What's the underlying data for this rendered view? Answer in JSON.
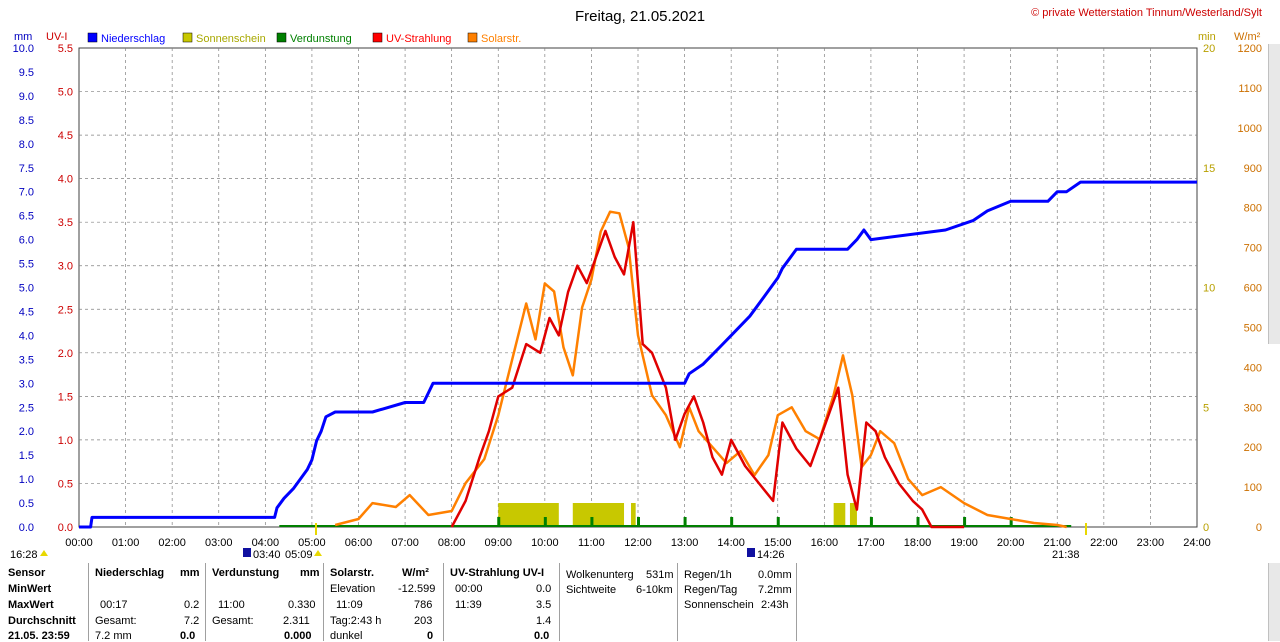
{
  "title": "Freitag, 21.05.2021",
  "copyright": "© private Wetterstation Tinnum/Westerland/Sylt",
  "axis_units": {
    "left1": "mm",
    "left2": "UV-I",
    "right1": "min",
    "right2": "W/m²"
  },
  "legend": [
    {
      "label": "Niederschlag",
      "color": "#0000ff"
    },
    {
      "label": "Sonnenschein",
      "color": "#c8c800"
    },
    {
      "label": "Verdunstung",
      "color": "#008000"
    },
    {
      "label": "UV-Strahlung",
      "color": "#ff0000"
    },
    {
      "label": "Solarstr.",
      "color": "#ff8000"
    }
  ],
  "colors": {
    "precip": "#0000ff",
    "sun": "#c8c800",
    "evap": "#008000",
    "uv": "#e00000",
    "solar": "#ff8000",
    "grid": "#808080"
  },
  "time_marks": {
    "current": "16:28",
    "sunrise": "03:40",
    "sunrise2": "05:09",
    "noon": "14:26",
    "sunset": "21:38"
  },
  "chart_data": {
    "type": "line",
    "x_unit": "hours",
    "xlim": [
      0,
      24
    ],
    "x_ticks": [
      "00:00",
      "01:00",
      "02:00",
      "03:00",
      "04:00",
      "05:00",
      "06:00",
      "07:00",
      "08:00",
      "09:00",
      "10:00",
      "11:00",
      "12:00",
      "13:00",
      "14:00",
      "15:00",
      "16:00",
      "17:00",
      "18:00",
      "19:00",
      "20:00",
      "21:00",
      "22:00",
      "23:00",
      "24:00"
    ],
    "y_mm": {
      "lim": [
        0,
        10
      ],
      "ticks": [
        "0.0",
        "0.5",
        "1.0",
        "1.5",
        "2.0",
        "2.5",
        "3.0",
        "3.5",
        "4.0",
        "4.5",
        "5.0",
        "5.5",
        "6.0",
        "6.5",
        "7.0",
        "7.5",
        "8.0",
        "8.5",
        "9.0",
        "9.5",
        "10.0"
      ]
    },
    "y_uv": {
      "lim": [
        0,
        5.5
      ],
      "ticks": [
        "0.0",
        "0.5",
        "1.0",
        "1.5",
        "2.0",
        "2.5",
        "3.0",
        "3.5",
        "4.0",
        "4.5",
        "5.0",
        "5.5"
      ]
    },
    "y_min": {
      "lim": [
        0,
        20
      ],
      "ticks": [
        "0",
        "5",
        "10",
        "15",
        "20"
      ]
    },
    "y_wm2": {
      "lim": [
        0,
        1200
      ],
      "ticks": [
        "0",
        "100",
        "200",
        "300",
        "400",
        "500",
        "600",
        "700",
        "800",
        "900",
        "1000",
        "1100",
        "1200"
      ]
    },
    "series": [
      {
        "name": "Niederschlag",
        "axis": "mm",
        "x": [
          0,
          0.25,
          0.28,
          4.2,
          4.25,
          4.4,
          4.6,
          4.75,
          4.9,
          5.0,
          5.1,
          5.2,
          5.3,
          5.5,
          5.8,
          6.3,
          7.0,
          7.4,
          7.5,
          7.6,
          10.5,
          13.0,
          13.1,
          13.4,
          13.6,
          13.8,
          14.0,
          14.2,
          14.4,
          14.55,
          14.7,
          14.85,
          15.0,
          15.1,
          15.25,
          15.4,
          15.55,
          16.5,
          16.7,
          16.85,
          17.0,
          18.6,
          19.2,
          19.5,
          20.0,
          20.8,
          21.0,
          21.2,
          21.5,
          22.5,
          23.0,
          24.0
        ],
        "y": [
          0,
          0,
          0.2,
          0.2,
          0.4,
          0.6,
          0.8,
          1.0,
          1.2,
          1.4,
          1.8,
          2.0,
          2.3,
          2.4,
          2.4,
          2.4,
          2.6,
          2.6,
          2.8,
          3.0,
          3.0,
          3.0,
          3.2,
          3.4,
          3.6,
          3.8,
          4.0,
          4.2,
          4.4,
          4.6,
          4.8,
          5.0,
          5.2,
          5.4,
          5.6,
          5.8,
          5.8,
          5.8,
          6.0,
          6.2,
          6.0,
          6.2,
          6.4,
          6.6,
          6.8,
          6.8,
          7.0,
          7.0,
          7.2,
          7.2,
          7.2,
          7.2
        ]
      },
      {
        "name": "UV-Strahlung",
        "axis": "uv",
        "x": [
          8.0,
          8.3,
          8.6,
          8.8,
          9.0,
          9.3,
          9.6,
          9.9,
          10.1,
          10.3,
          10.5,
          10.7,
          10.9,
          11.1,
          11.3,
          11.5,
          11.7,
          11.9,
          12.1,
          12.3,
          12.6,
          12.8,
          13.0,
          13.2,
          13.4,
          13.6,
          13.8,
          14.0,
          14.3,
          14.6,
          14.9,
          15.1,
          15.4,
          15.7,
          15.9,
          16.1,
          16.3,
          16.5,
          16.7,
          16.9,
          17.1,
          17.3,
          17.6,
          17.9,
          18.1,
          18.3,
          19.0
        ],
        "y": [
          0,
          0.3,
          0.8,
          1.1,
          1.5,
          1.6,
          2.1,
          2.0,
          2.4,
          2.2,
          2.7,
          3.0,
          2.8,
          3.1,
          3.4,
          3.1,
          2.9,
          3.5,
          2.1,
          2.0,
          1.6,
          1.0,
          1.3,
          1.5,
          1.2,
          0.8,
          0.6,
          1.0,
          0.7,
          0.5,
          0.3,
          1.2,
          0.9,
          0.7,
          1.0,
          1.3,
          1.6,
          0.6,
          0.2,
          1.2,
          1.1,
          0.8,
          0.5,
          0.3,
          0.2,
          0,
          0
        ]
      },
      {
        "name": "Solarstr.",
        "axis": "wm2",
        "x": [
          5.5,
          6.0,
          6.3,
          6.8,
          7.1,
          7.5,
          8.0,
          8.3,
          8.7,
          9.0,
          9.3,
          9.6,
          9.8,
          10.0,
          10.2,
          10.4,
          10.6,
          10.8,
          11.0,
          11.2,
          11.4,
          11.6,
          11.8,
          12.0,
          12.3,
          12.6,
          12.9,
          13.1,
          13.3,
          13.6,
          13.9,
          14.2,
          14.5,
          14.8,
          15.0,
          15.3,
          15.6,
          15.9,
          16.2,
          16.4,
          16.6,
          16.8,
          17.0,
          17.2,
          17.5,
          17.8,
          18.1,
          18.5,
          19.0,
          19.5,
          20.0,
          20.5,
          21.0,
          21.2
        ],
        "y": [
          5,
          20,
          60,
          50,
          80,
          30,
          40,
          110,
          170,
          280,
          420,
          560,
          470,
          610,
          590,
          450,
          380,
          550,
          620,
          740,
          790,
          786,
          700,
          480,
          330,
          280,
          200,
          300,
          240,
          200,
          160,
          190,
          130,
          180,
          280,
          300,
          240,
          220,
          330,
          430,
          330,
          150,
          180,
          240,
          210,
          120,
          80,
          100,
          60,
          30,
          20,
          10,
          5,
          0
        ]
      }
    ],
    "sunshine_blocks": [
      [
        9.0,
        10.3
      ],
      [
        10.6,
        11.7
      ],
      [
        11.85,
        11.95
      ],
      [
        16.2,
        16.45
      ],
      [
        16.55,
        16.7
      ]
    ],
    "stats": {
      "header": {
        "sensor": "Sensor",
        "precip": "Niederschlag",
        "precip_unit": "mm",
        "evap": "Verdunstung",
        "evap_unit": "mm",
        "solar": "Solarstr.",
        "solar_unit": "W/m²",
        "uv": "UV-Strahlung UV-I"
      },
      "rows": [
        {
          "label": "MinWert",
          "precip_t": "",
          "precip_v": "",
          "evap_t": "",
          "evap_v": "",
          "solar_t": "Elevation",
          "solar_v": "-12.599",
          "uv_t": "00:00",
          "uv_v": "0.0"
        },
        {
          "label": "MaxWert",
          "precip_t": "00:17",
          "precip_v": "0.2",
          "evap_t": "11:00",
          "evap_v": "0.330",
          "solar_t": "11:09",
          "solar_v": "786",
          "uv_t": "11:39",
          "uv_v": "3.5"
        },
        {
          "label": "Durchschnitt",
          "precip_t": "Gesamt:",
          "precip_v": "7.2",
          "evap_t": "Gesamt:",
          "evap_v": "2.311",
          "solar_t": "Tag:2:43 h",
          "solar_v": "203",
          "uv_t": "",
          "uv_v": "1.4"
        },
        {
          "label": "21.05. 23:59",
          "precip_t": "7.2 mm",
          "precip_v": "0.0",
          "evap_t": "",
          "evap_v": "0.000",
          "solar_t": "dunkel",
          "solar_v": "0",
          "uv_t": "",
          "uv_v": "0.0"
        }
      ],
      "extra1": [
        {
          "k": "Wolkenunterg",
          "v": "531m"
        },
        {
          "k": "Sichtweite",
          "v": "6-10km"
        }
      ],
      "extra2": [
        {
          "k": "Regen/1h",
          "v": "0.0mm"
        },
        {
          "k": "Regen/Tag",
          "v": "7.2mm"
        },
        {
          "k": "Sonnenschein",
          "v": "2:43h"
        }
      ]
    }
  }
}
